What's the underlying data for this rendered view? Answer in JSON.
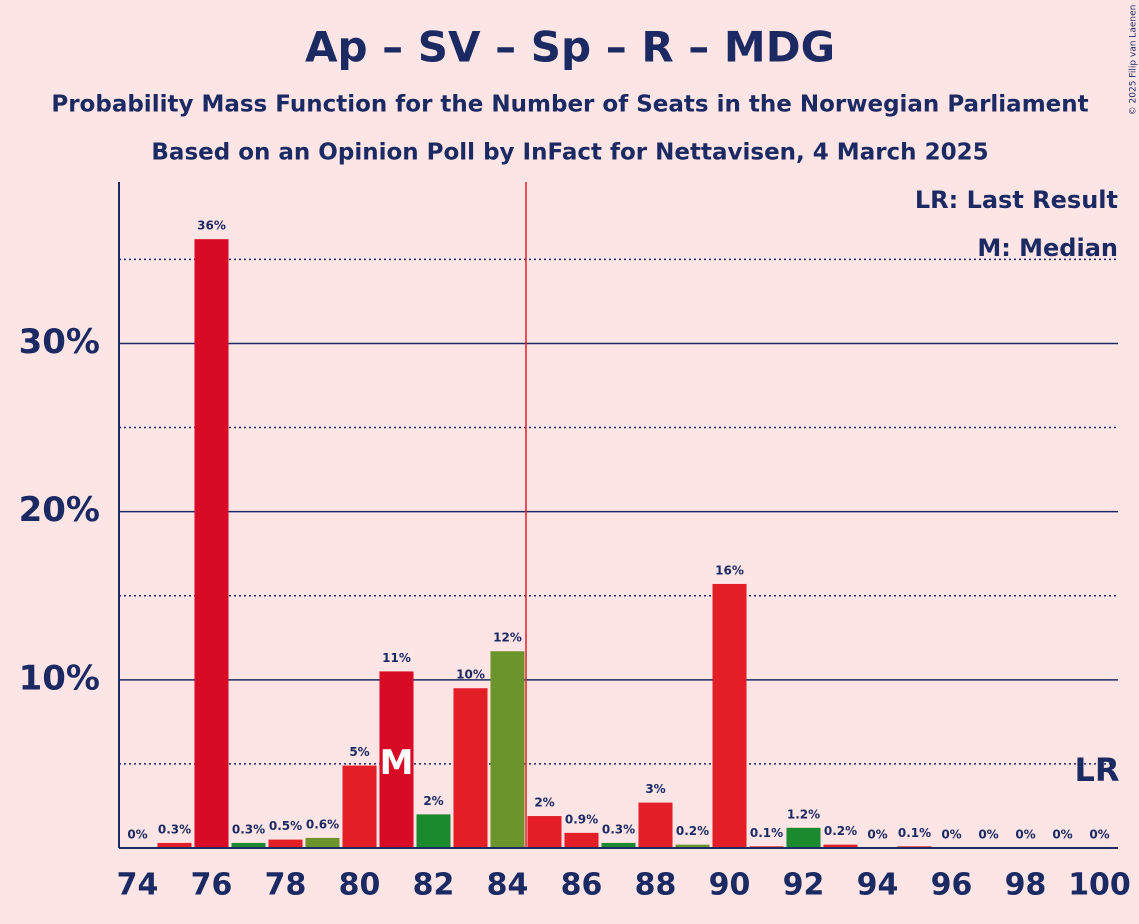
{
  "chart_data": {
    "type": "bar",
    "title": "Ap – SV – Sp – R – MDG",
    "subtitle": "Probability Mass Function for the Number of Seats in the Norwegian Parliament",
    "subtitle2": "Based on an Opinion Poll by InFact for Nettavisen, 4 March 2025",
    "copyright": "© 2025 Filip van Laenen",
    "legend": [
      "LR: Last Result",
      "M: Median"
    ],
    "x": [
      74,
      75,
      76,
      77,
      78,
      79,
      80,
      81,
      82,
      83,
      84,
      85,
      86,
      87,
      88,
      89,
      90,
      91,
      92,
      93,
      94,
      95,
      96,
      97,
      98,
      99,
      100
    ],
    "values": [
      0,
      0.3,
      36.2,
      0.3,
      0.5,
      0.6,
      4.9,
      10.5,
      2.0,
      9.5,
      11.7,
      1.9,
      0.9,
      0.3,
      2.7,
      0.2,
      15.7,
      0.1,
      1.2,
      0.2,
      0,
      0.1,
      0,
      0,
      0,
      0,
      0
    ],
    "value_labels": [
      "0%",
      "0.3%",
      "36%",
      "0.3%",
      "0.5%",
      "0.6%",
      "5%",
      "11%",
      "2%",
      "10%",
      "12%",
      "2%",
      "0.9%",
      "0.3%",
      "3%",
      "0.2%",
      "16%",
      "0.1%",
      "1.2%",
      "0.2%",
      "0%",
      "0.1%",
      "0%",
      "0%",
      "0%",
      "0%",
      "0%"
    ],
    "colors": [
      "#e31e26",
      "#e31e26",
      "#d80a26",
      "#1b8a2e",
      "#e31e26",
      "#6b952c",
      "#e31e26",
      "#d80a26",
      "#1b8a2e",
      "#e31e26",
      "#6b952c",
      "#e31e26",
      "#e31e26",
      "#1b8a2e",
      "#e31e26",
      "#6b952c",
      "#e31e26",
      "#e31e26",
      "#1b8a2e",
      "#e31e26",
      "#e31e26",
      "#e31e26",
      "#e31e26",
      "#e31e26",
      "#e31e26",
      "#e31e26",
      "#e31e26"
    ],
    "xlim": [
      73.5,
      100.5
    ],
    "xticks": [
      74,
      76,
      78,
      80,
      82,
      84,
      86,
      88,
      90,
      92,
      94,
      96,
      98,
      100
    ],
    "ylim": [
      0,
      39.6
    ],
    "yticks": [
      {
        "value": 10,
        "label": "10%"
      },
      {
        "value": 20,
        "label": "20%"
      },
      {
        "value": 30,
        "label": "30%"
      }
    ],
    "minor_yticks": [
      5,
      15,
      25,
      35
    ],
    "majority_x": 84.5,
    "median": {
      "x": 81,
      "label": "M"
    },
    "last_result": {
      "x": 100,
      "label": "LR"
    },
    "grid": true
  }
}
